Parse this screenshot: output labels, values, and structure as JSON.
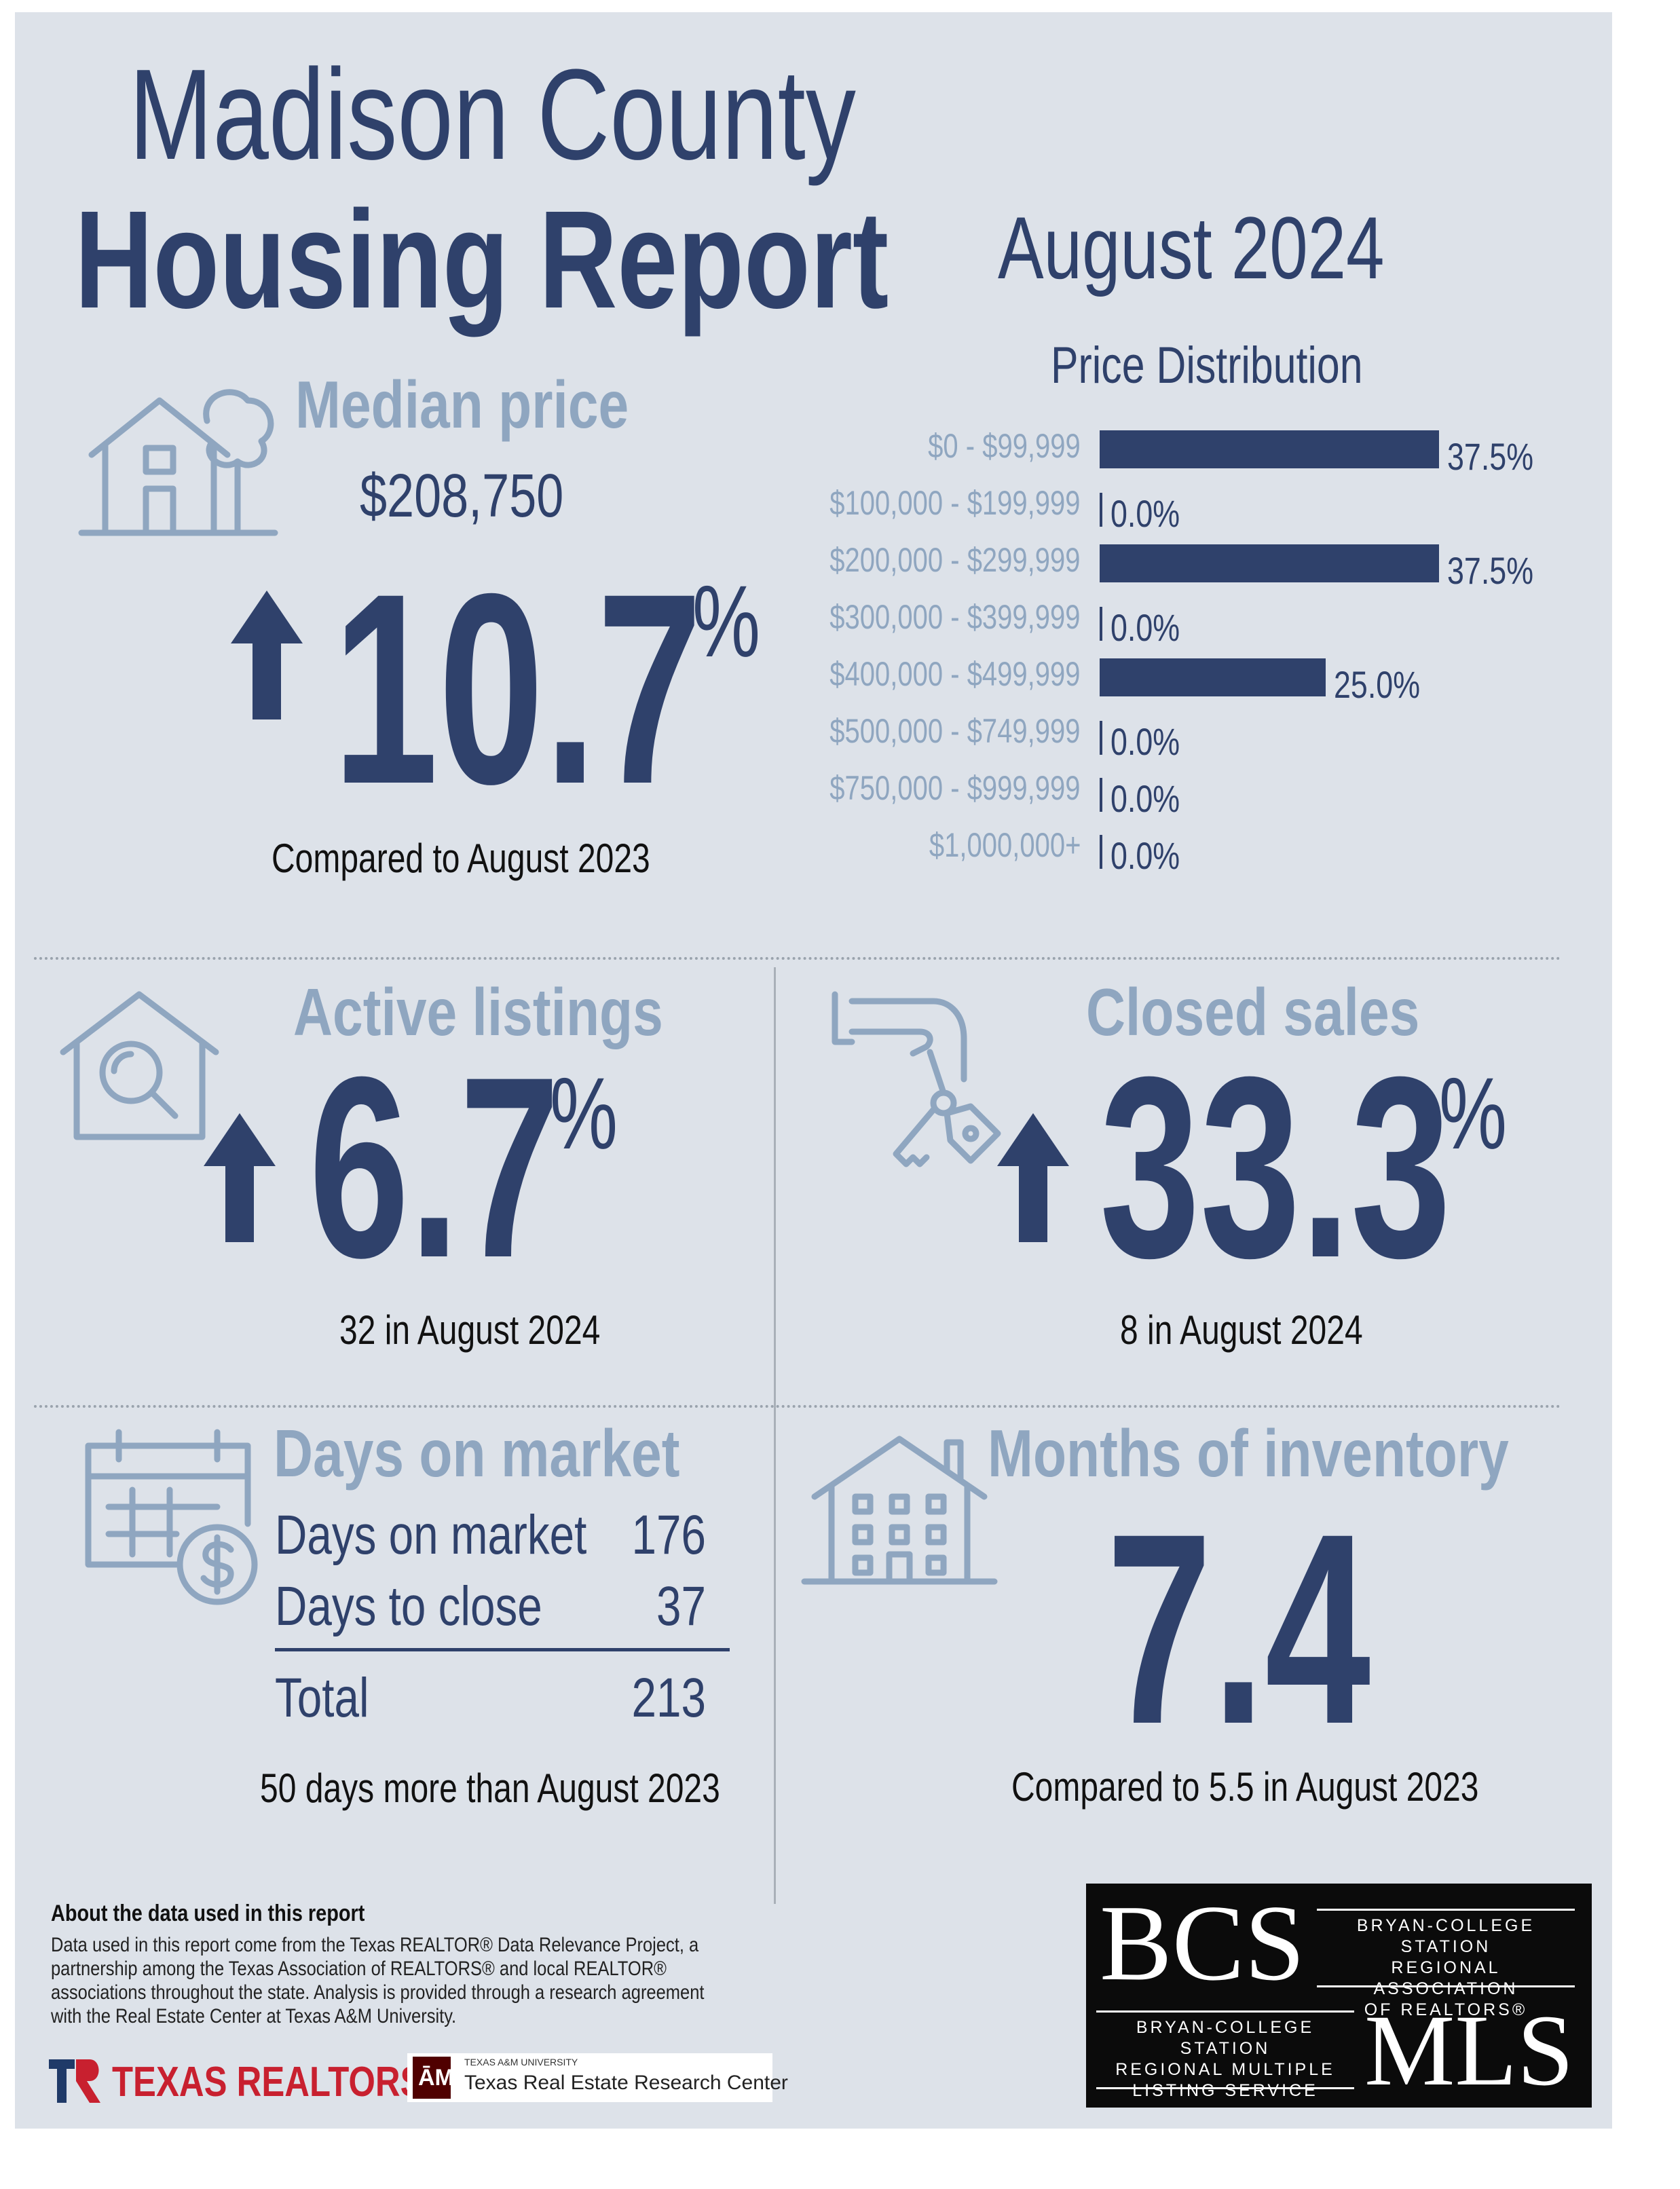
{
  "header": {
    "title_line1": "Madison County",
    "title_line2": "Housing Report",
    "period": "August 2024"
  },
  "median_price": {
    "label": "Median price",
    "value": "$208,750",
    "change": "10.7",
    "pct_sign": "%",
    "direction": "up",
    "caption": "Compared to August 2023",
    "icon": "house-with-tree-icon"
  },
  "price_distribution": {
    "title": "Price Distribution",
    "chart_data": {
      "type": "bar",
      "orientation": "horizontal",
      "title": "Price Distribution",
      "categories": [
        "$0 - $99,999",
        "$100,000 - $199,999",
        "$200,000 - $299,999",
        "$300,000 - $399,999",
        "$400,000 - $499,999",
        "$500,000 - $749,999",
        "$750,000 - $999,999",
        "$1,000,000+"
      ],
      "values": [
        37.5,
        0.0,
        37.5,
        0.0,
        25.0,
        0.0,
        0.0,
        0.0
      ],
      "value_labels": [
        "37.5%",
        "0.0%",
        "37.5%",
        "0.0%",
        "25.0%",
        "0.0%",
        "0.0%",
        "0.0%"
      ],
      "bar_color": "#2f416b",
      "xlim": [
        0,
        37.5
      ]
    }
  },
  "active_listings": {
    "label": "Active listings",
    "change": "6.7",
    "pct_sign": "%",
    "direction": "up",
    "caption": "32 in August 2024",
    "icon": "house-magnifier-icon"
  },
  "closed_sales": {
    "label": "Closed sales",
    "change": "33.3",
    "pct_sign": "%",
    "direction": "up",
    "caption": "8 in August 2024",
    "icon": "hand-keys-icon"
  },
  "days_on_market": {
    "label": "Days on market",
    "rows": [
      {
        "label": "Days on market",
        "value": "176"
      },
      {
        "label": "Days to close",
        "value": "37"
      }
    ],
    "total_label": "Total",
    "total_value": "213",
    "caption": "50 days more than August 2023",
    "icon": "calendar-dollar-icon"
  },
  "months_inventory": {
    "label": "Months of inventory",
    "value": "7.4",
    "caption": "Compared to 5.5 in August 2023",
    "icon": "apartment-building-icon"
  },
  "about": {
    "heading": "About the data used in this report",
    "text": "Data used in this report come from the Texas REALTOR® Data Relevance Project, a partnership among the Texas Association of REALTORS® and local REALTOR® associations throughout the state. Analysis is provided through a research agreement with the Real Estate Center at Texas A&M University."
  },
  "logos": {
    "texas_realtors": "TEXAS REALTORS",
    "tamu_small": "TEXAS A&M UNIVERSITY",
    "tamu_center": "Texas Real Estate Research Center",
    "bcs": "BCS",
    "bcs_assoc": [
      "BRYAN-COLLEGE STATION",
      "REGIONAL ASSOCIATION",
      "OF REALTORS®"
    ],
    "mls_service": [
      "BRYAN-COLLEGE STATION",
      "REGIONAL MULTIPLE",
      "LISTING SERVICE"
    ],
    "mls": "MLS"
  },
  "colors": {
    "navy": "#2f416b",
    "steel": "#8fa6c0",
    "background": "#dde2e9"
  }
}
